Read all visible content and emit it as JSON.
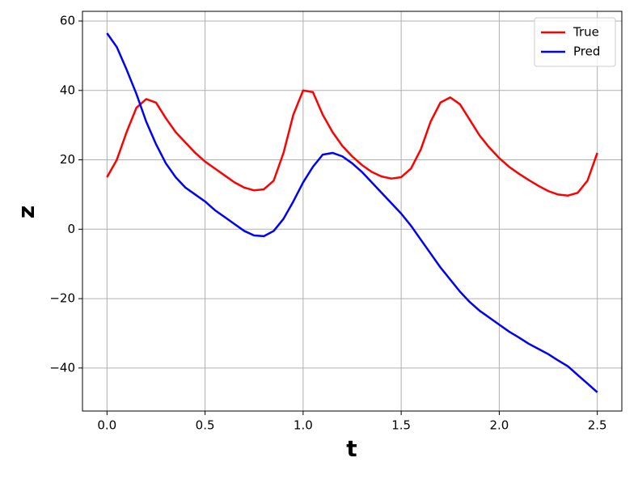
{
  "chart_data": {
    "type": "line",
    "xlabel": "t",
    "ylabel": "z",
    "x": [
      0,
      0.05,
      0.1,
      0.15,
      0.2,
      0.25,
      0.3,
      0.35,
      0.4,
      0.45,
      0.5,
      0.55,
      0.6,
      0.65,
      0.7,
      0.75,
      0.8,
      0.85,
      0.9,
      0.95,
      1.0,
      1.05,
      1.1,
      1.15,
      1.2,
      1.25,
      1.3,
      1.35,
      1.4,
      1.45,
      1.5,
      1.55,
      1.6,
      1.65,
      1.7,
      1.75,
      1.8,
      1.85,
      1.9,
      1.95,
      2.0,
      2.05,
      2.1,
      2.15,
      2.2,
      2.25,
      2.3,
      2.35,
      2.4,
      2.45,
      2.5
    ],
    "series": [
      {
        "name": "True",
        "color": "#ff0000",
        "values": [
          15,
          20,
          28,
          35,
          37.5,
          36.5,
          32,
          28,
          25,
          22,
          19.5,
          17.5,
          15.5,
          13.5,
          12,
          11.2,
          11.5,
          14,
          22,
          33,
          40,
          39.5,
          33,
          28,
          24,
          21,
          18.5,
          16.5,
          15.2,
          14.6,
          15,
          17.5,
          23,
          31,
          36.5,
          38,
          36,
          31.5,
          27,
          23.5,
          20.5,
          18,
          16,
          14.2,
          12.5,
          11,
          10,
          9.7,
          10.5,
          14,
          22
        ]
      },
      {
        "name": "Pred",
        "color": "#0000ff",
        "values": [
          56.5,
          52.5,
          46,
          39,
          31,
          24.5,
          19,
          15,
          12,
          10,
          8,
          5.5,
          3.5,
          1.5,
          -0.5,
          -1.8,
          -2,
          -0.5,
          3,
          8,
          13.5,
          18,
          21.5,
          22,
          21,
          19,
          16.5,
          13.5,
          10.5,
          7.5,
          4.5,
          1,
          -3,
          -7,
          -11,
          -14.5,
          -18,
          -21,
          -23.5,
          -25.5,
          -27.5,
          -29.5,
          -31.2,
          -33,
          -34.5,
          -36,
          -37.8,
          -39.5,
          -42,
          -44.5,
          -47
        ]
      }
    ],
    "xlim": [
      -0.125,
      2.625
    ],
    "xticks": [
      {
        "value": 0,
        "label": "0.0"
      },
      0.5,
      {
        "value": 1,
        "label": "1.0"
      },
      1.5,
      {
        "value": 2,
        "label": "2.0"
      },
      2.5
    ],
    "ylim": [
      -52.4,
      62.8
    ],
    "yticks": [
      {
        "value": -40,
        "label": "−40"
      },
      {
        "value": -20,
        "label": "−20"
      },
      0,
      20,
      40,
      60
    ],
    "grid": true,
    "legend": "upper right"
  }
}
